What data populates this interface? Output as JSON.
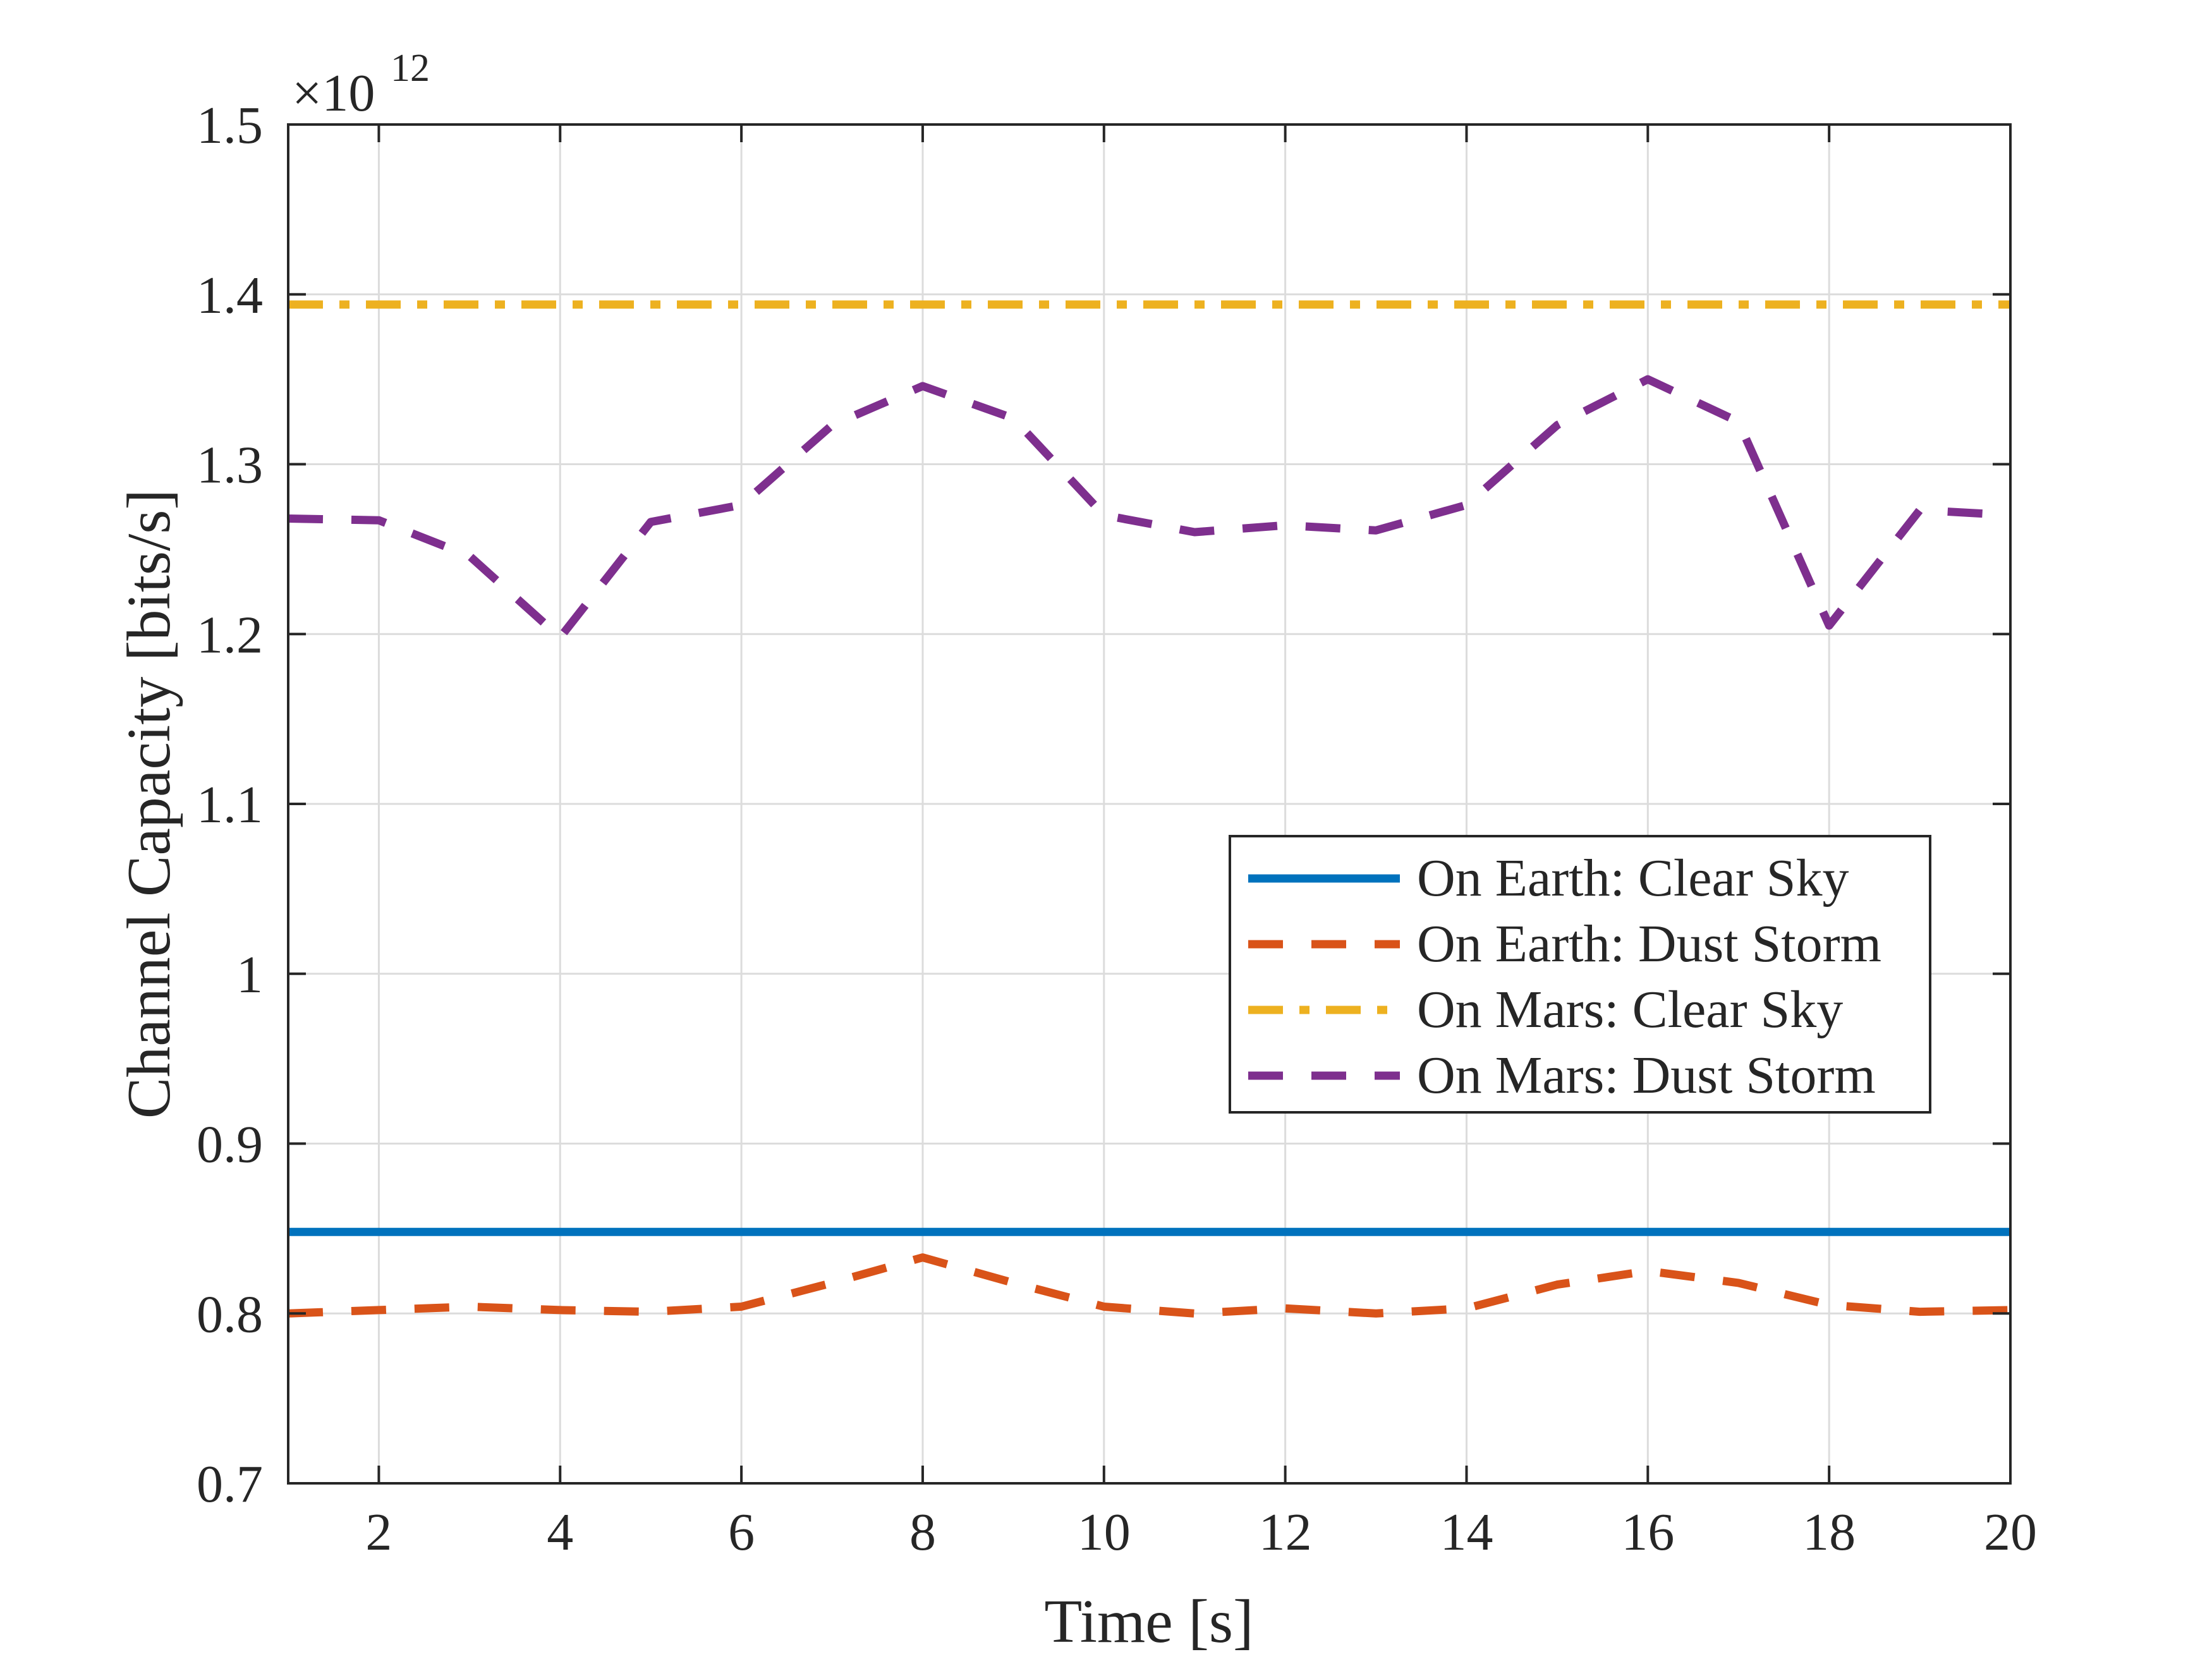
{
  "chart_data": {
    "type": "line",
    "title": "",
    "xlabel": "Time [s]",
    "ylabel": "Channel Capacity [bits/s]",
    "y_exponent_label": "×10",
    "y_exponent_power": "12",
    "xlim": [
      1,
      20
    ],
    "ylim": [
      0.7,
      1.5
    ],
    "x_ticks": [
      2,
      4,
      6,
      8,
      10,
      12,
      14,
      16,
      18,
      20
    ],
    "x_tick_labels": [
      "2",
      "4",
      "6",
      "8",
      "10",
      "12",
      "14",
      "16",
      "18",
      "20"
    ],
    "y_ticks": [
      0.7,
      0.8,
      0.9,
      1.0,
      1.1,
      1.2,
      1.3,
      1.4,
      1.5
    ],
    "y_tick_labels": [
      "0.7",
      "0.8",
      "0.9",
      "1",
      "1.1",
      "1.2",
      "1.3",
      "1.4",
      "1.5"
    ],
    "grid": true,
    "legend_position": "center-right",
    "x": [
      1,
      2,
      3,
      4,
      5,
      6,
      7,
      8,
      9,
      10,
      11,
      12,
      13,
      14,
      15,
      16,
      17,
      18,
      19,
      20
    ],
    "series": [
      {
        "name": "On Earth: Clear Sky",
        "color": "#0072BD",
        "style": "solid",
        "values": [
          0.848,
          0.848,
          0.848,
          0.848,
          0.848,
          0.848,
          0.848,
          0.848,
          0.848,
          0.848,
          0.848,
          0.848,
          0.848,
          0.848,
          0.848,
          0.848,
          0.848,
          0.848,
          0.848,
          0.848
        ]
      },
      {
        "name": "On Earth: Dust Storm",
        "color": "#D95319",
        "style": "dashed",
        "values": [
          0.8,
          0.802,
          0.804,
          0.802,
          0.801,
          0.804,
          0.818,
          0.833,
          0.818,
          0.804,
          0.8,
          0.803,
          0.8,
          0.803,
          0.817,
          0.825,
          0.818,
          0.805,
          0.801,
          0.802
        ]
      },
      {
        "name": "On Mars: Clear Sky",
        "color": "#EDB120",
        "style": "dashdot",
        "values": [
          1.394,
          1.394,
          1.394,
          1.394,
          1.394,
          1.394,
          1.394,
          1.394,
          1.394,
          1.394,
          1.394,
          1.394,
          1.394,
          1.394,
          1.394,
          1.394,
          1.394,
          1.394,
          1.394,
          1.394
        ]
      },
      {
        "name": "On Mars: Dust Storm",
        "color": "#7E2F8E",
        "style": "dashed",
        "values": [
          1.268,
          1.267,
          1.246,
          1.198,
          1.266,
          1.276,
          1.323,
          1.346,
          1.327,
          1.27,
          1.26,
          1.264,
          1.261,
          1.276,
          1.323,
          1.35,
          1.325,
          1.205,
          1.273,
          1.27
        ]
      }
    ]
  }
}
